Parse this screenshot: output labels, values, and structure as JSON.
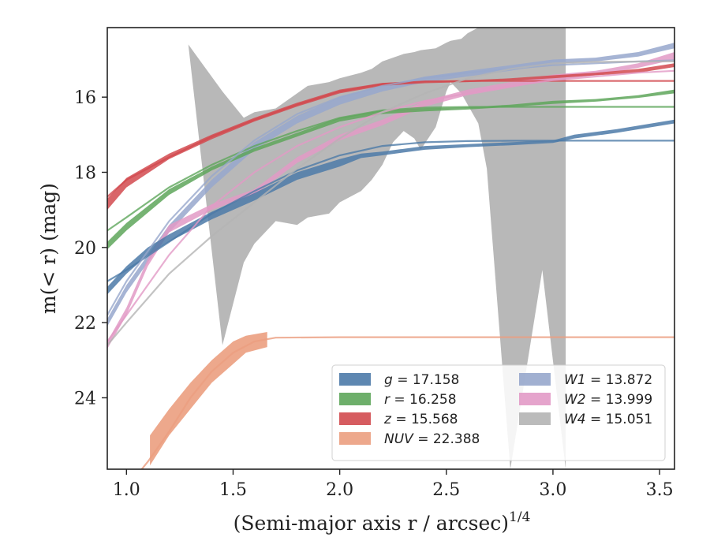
{
  "chart_data": {
    "type": "line",
    "xlabel": "(Semi-major axis r / arcsec)",
    "xlabel_exponent": "1/4",
    "ylabel": "m(< r) (mag)",
    "xlim": [
      0.91,
      3.57
    ],
    "ylim": [
      25.9,
      14.15
    ],
    "y_inverted": true,
    "grid": false,
    "legend_position": "lower-right",
    "x_ticks": [
      "1.0",
      "1.5",
      "2.0",
      "2.5",
      "3.0",
      "3.5"
    ],
    "y_ticks": [
      "16",
      "18",
      "20",
      "22",
      "24"
    ],
    "series": [
      {
        "key": "g",
        "name": "g = 17.158",
        "label_var": "g",
        "label_val": "17.158",
        "color": "#4c7aa8",
        "model_x": [
          0.91,
          1.0,
          1.2,
          1.4,
          1.6,
          1.8,
          2.0,
          2.2,
          2.4,
          2.6,
          2.8,
          3.0,
          3.57
        ],
        "model_y": [
          20.9,
          20.6,
          19.85,
          19.1,
          18.5,
          17.95,
          17.55,
          17.3,
          17.2,
          17.17,
          17.16,
          17.158,
          17.158
        ],
        "band_x": [
          0.91,
          1.0,
          1.1,
          1.2,
          1.4,
          1.6,
          1.8,
          2.0,
          2.1,
          2.2,
          2.4,
          2.6,
          2.8,
          3.0,
          3.1,
          3.3,
          3.57
        ],
        "band_upper": [
          21.05,
          20.5,
          20.0,
          19.65,
          19.05,
          18.55,
          18.0,
          17.65,
          17.5,
          17.45,
          17.3,
          17.25,
          17.2,
          17.15,
          17.0,
          16.85,
          16.6
        ],
        "band_lower": [
          21.25,
          20.7,
          20.2,
          19.85,
          19.25,
          18.75,
          18.2,
          17.85,
          17.62,
          17.55,
          17.4,
          17.33,
          17.28,
          17.22,
          17.1,
          16.95,
          16.7
        ]
      },
      {
        "key": "r",
        "name": "r = 16.258",
        "label_var": "r",
        "label_val": "16.258",
        "color": "#5ea65b",
        "model_x": [
          0.91,
          1.0,
          1.2,
          1.4,
          1.6,
          1.8,
          2.0,
          2.2,
          2.4,
          2.6,
          3.0,
          3.57
        ],
        "model_y": [
          19.55,
          19.2,
          18.4,
          17.8,
          17.3,
          16.9,
          16.55,
          16.35,
          16.28,
          16.26,
          16.258,
          16.258
        ],
        "band_x": [
          0.91,
          1.0,
          1.2,
          1.4,
          1.6,
          1.8,
          2.0,
          2.2,
          2.4,
          2.6,
          2.8,
          3.0,
          3.2,
          3.4,
          3.57
        ],
        "band_upper": [
          19.85,
          19.35,
          18.45,
          17.85,
          17.35,
          16.95,
          16.55,
          16.35,
          16.3,
          16.27,
          16.2,
          16.1,
          16.05,
          15.95,
          15.8
        ],
        "band_lower": [
          20.05,
          19.55,
          18.6,
          17.95,
          17.45,
          17.05,
          16.65,
          16.45,
          16.38,
          16.33,
          16.26,
          16.18,
          16.12,
          16.02,
          15.9
        ]
      },
      {
        "key": "z",
        "name": "z = 15.568",
        "label_var": "z",
        "label_val": "15.568",
        "color": "#d24a4f",
        "model_x": [
          0.91,
          1.0,
          1.2,
          1.4,
          1.6,
          1.8,
          2.0,
          2.2,
          2.4,
          2.6,
          3.0,
          3.57
        ],
        "model_y": [
          18.65,
          18.2,
          17.6,
          17.05,
          16.6,
          16.2,
          15.85,
          15.65,
          15.58,
          15.57,
          15.568,
          15.568
        ],
        "band_x": [
          0.91,
          1.0,
          1.2,
          1.4,
          1.6,
          1.8,
          2.0,
          2.2,
          2.4,
          2.6,
          2.8,
          3.0,
          3.2,
          3.4,
          3.57
        ],
        "band_upper": [
          18.7,
          18.15,
          17.5,
          17.0,
          16.55,
          16.15,
          15.8,
          15.62,
          15.57,
          15.55,
          15.5,
          15.42,
          15.35,
          15.25,
          15.1
        ],
        "band_lower": [
          19.0,
          18.4,
          17.65,
          17.12,
          16.65,
          16.25,
          15.9,
          15.7,
          15.63,
          15.6,
          15.56,
          15.5,
          15.42,
          15.35,
          15.2
        ]
      },
      {
        "key": "NUV",
        "name": "NUV = 22.388",
        "label_var": "NUV",
        "label_val": "22.388",
        "color": "#eb9e7f",
        "model_x": [
          0.91,
          1.0,
          1.1,
          1.2,
          1.3,
          1.4,
          1.5,
          1.6,
          1.7,
          2.0,
          2.5,
          3.0,
          3.57
        ],
        "model_y": [
          26.8,
          26.4,
          25.7,
          24.9,
          24.0,
          23.3,
          22.8,
          22.5,
          22.4,
          22.388,
          22.388,
          22.388,
          22.388
        ],
        "band_x": [
          1.11,
          1.2,
          1.3,
          1.4,
          1.5,
          1.56,
          1.66
        ],
        "band_upper": [
          25.0,
          24.3,
          23.6,
          23.0,
          22.5,
          22.35,
          22.25
        ],
        "band_lower": [
          25.8,
          25.0,
          24.3,
          23.6,
          23.1,
          22.8,
          22.65
        ]
      },
      {
        "key": "W1",
        "name": "W1 = 13.872",
        "label_var": "W1",
        "label_val": "13.872",
        "color": "#97a7cc",
        "model_x": [
          0.91,
          1.0,
          1.2,
          1.4,
          1.6,
          1.8,
          2.0,
          2.2,
          2.4,
          2.6,
          2.8,
          3.0,
          3.2,
          3.4,
          3.57
        ],
        "model_y": [
          21.8,
          20.9,
          19.3,
          18.1,
          17.15,
          16.45,
          16.0,
          15.7,
          15.5,
          15.35,
          15.25,
          15.15,
          15.1,
          15.05,
          15.02
        ],
        "band_x": [
          0.91,
          1.0,
          1.2,
          1.4,
          1.6,
          1.8,
          2.0,
          2.2,
          2.4,
          2.6,
          2.8,
          3.0,
          3.2,
          3.4,
          3.57
        ],
        "band_upper": [
          21.9,
          21.0,
          19.4,
          18.2,
          17.2,
          16.5,
          16.0,
          15.7,
          15.45,
          15.3,
          15.15,
          15.0,
          14.95,
          14.8,
          14.55
        ],
        "band_lower": [
          22.1,
          21.2,
          19.6,
          18.4,
          17.4,
          16.7,
          16.2,
          15.85,
          15.6,
          15.45,
          15.3,
          15.12,
          15.05,
          14.92,
          14.7
        ]
      },
      {
        "key": "W2",
        "name": "W2 = 13.999",
        "label_var": "W2",
        "label_val": "13.999",
        "color": "#e29ac6",
        "model_x": [
          0.91,
          1.0,
          1.2,
          1.4,
          1.6,
          1.8,
          2.0,
          2.2,
          2.4,
          2.6,
          2.8,
          3.0,
          3.2,
          3.4,
          3.57
        ],
        "model_y": [
          22.5,
          21.8,
          20.2,
          18.9,
          18.0,
          17.3,
          16.8,
          16.4,
          16.1,
          15.9,
          15.7,
          15.55,
          15.45,
          15.35,
          15.3
        ],
        "band_x": [
          0.91,
          1.0,
          1.1,
          1.2,
          1.4,
          1.6,
          1.8,
          2.0,
          2.2,
          2.4,
          2.6,
          2.8,
          3.0,
          3.2,
          3.4,
          3.57
        ],
        "band_upper": [
          22.5,
          21.6,
          20.3,
          19.4,
          18.85,
          18.45,
          17.6,
          17.0,
          16.6,
          16.1,
          15.8,
          15.6,
          15.4,
          15.3,
          15.1,
          14.8
        ],
        "band_lower": [
          22.7,
          21.8,
          20.5,
          19.6,
          19.0,
          18.6,
          17.75,
          17.15,
          16.75,
          16.25,
          15.95,
          15.75,
          15.55,
          15.42,
          15.22,
          15.0
        ]
      },
      {
        "key": "W4",
        "name": "W4 = 15.051",
        "label_var": "W4",
        "label_val": "15.051",
        "color": "#b4b4b4",
        "model_x": [
          0.91,
          1.0,
          1.2,
          1.4,
          1.6,
          1.8,
          2.0,
          2.2,
          2.4,
          2.6,
          2.8,
          3.0,
          3.2,
          3.57
        ],
        "model_y": [
          22.6,
          22.0,
          20.7,
          19.7,
          18.8,
          17.9,
          17.1,
          16.4,
          15.9,
          15.5,
          15.25,
          15.1,
          15.06,
          15.051
        ],
        "band_x": [
          1.29,
          1.29,
          1.45,
          1.55,
          1.6,
          1.7,
          1.8,
          1.85,
          1.95,
          2.0,
          2.1,
          2.15,
          2.2,
          2.25,
          2.3,
          2.35,
          2.38,
          2.45,
          2.5,
          2.52,
          2.57,
          2.6,
          2.65,
          2.69,
          2.8,
          2.95,
          3.06,
          3.06
        ],
        "band_upper": [
          25.9,
          14.6,
          15.85,
          16.55,
          16.4,
          16.3,
          15.9,
          15.7,
          15.6,
          15.5,
          15.35,
          15.25,
          15.05,
          14.95,
          14.85,
          14.8,
          14.75,
          14.7,
          14.55,
          14.5,
          14.45,
          14.3,
          14.15,
          14.15,
          14.15,
          14.15,
          14.15,
          14.15
        ],
        "band_lower": [
          25.9,
          14.6,
          22.6,
          20.4,
          19.9,
          19.3,
          19.4,
          19.2,
          19.1,
          18.8,
          18.5,
          18.2,
          17.8,
          17.2,
          16.9,
          17.1,
          17.4,
          16.8,
          15.85,
          15.6,
          15.9,
          16.2,
          16.7,
          17.9,
          25.9,
          20.6,
          25.9,
          25.9
        ]
      }
    ]
  }
}
